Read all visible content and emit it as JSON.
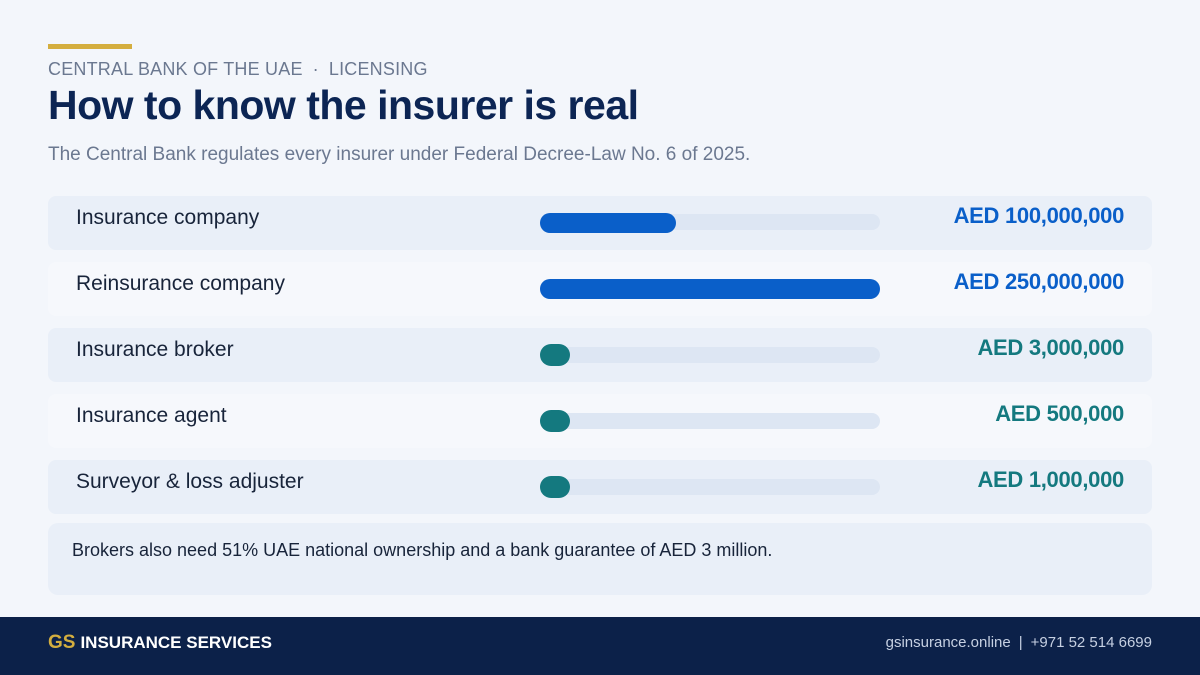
{
  "header": {
    "eyebrow_org": "CENTRAL BANK OF THE UAE",
    "eyebrow_separator": "·",
    "eyebrow_section": "LICENSING",
    "title": "How to know the insurer is real",
    "subtitle": "The Central Bank regulates every insurer under Federal Decree-Law No. 6 of 2025."
  },
  "colors": {
    "primary_bar": "#0a5fc9",
    "secondary_bar": "#14797f",
    "accent": "#d4ae3f",
    "navy": "#0c2554"
  },
  "chart_data": {
    "type": "bar",
    "orientation": "horizontal",
    "categories": [
      "Insurance company",
      "Reinsurance company",
      "Insurance broker",
      "Insurance agent",
      "Surveyor & loss adjuster"
    ],
    "values": [
      100000000,
      250000000,
      3000000,
      500000,
      1000000
    ],
    "value_labels": [
      "AED 100,000,000",
      "AED 250,000,000",
      "AED 3,000,000",
      "AED 500,000",
      "AED 1,000,000"
    ],
    "color_groups": [
      "primary",
      "primary",
      "secondary",
      "secondary",
      "secondary"
    ],
    "xlim": [
      0,
      250000000
    ]
  },
  "note": {
    "text": "Brokers also need 51% UAE national ownership and a bank guarantee of AED 3 million."
  },
  "footer": {
    "brand_mark": "GS",
    "brand_name": "INSURANCE SERVICES",
    "website": "gsinsurance.online",
    "separator": "|",
    "phone": "+971 52 514 6699"
  }
}
